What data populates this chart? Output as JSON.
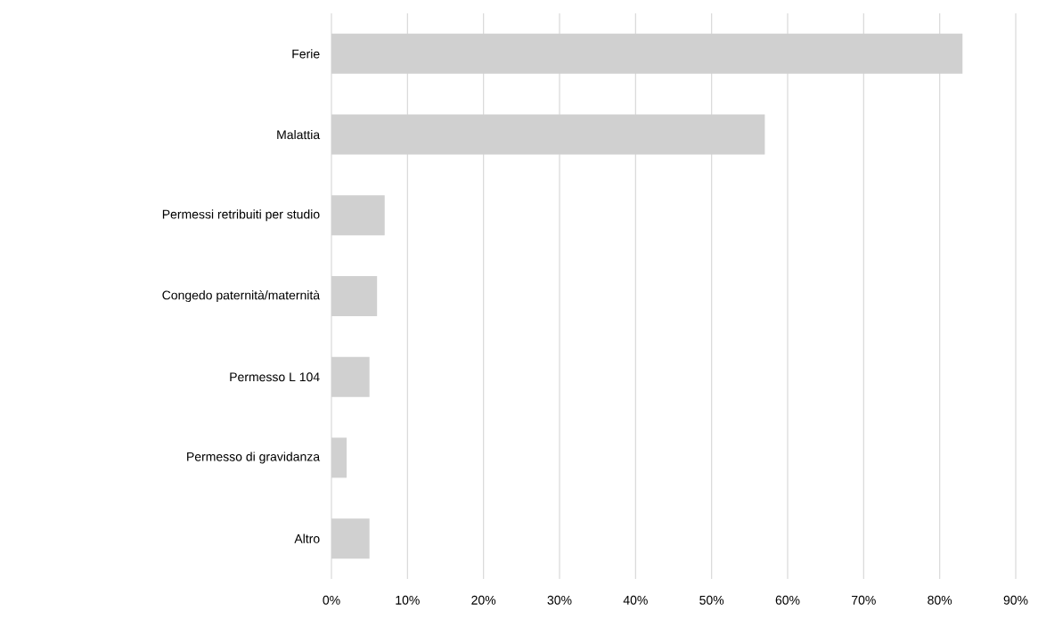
{
  "chart_data": {
    "type": "bar",
    "orientation": "horizontal",
    "categories": [
      "Ferie",
      "Malattia",
      "Permessi retribuiti per studio",
      "Congedo paternità/maternità",
      "Permesso L 104",
      "Permesso di gravidanza",
      "Altro"
    ],
    "values": [
      83,
      57,
      7,
      6,
      5,
      2,
      5
    ],
    "color": "#d0d0d0",
    "xlim": [
      0,
      90
    ],
    "xticks": [
      {
        "value": 0,
        "label": "0%"
      },
      {
        "value": 10,
        "label": "10%"
      },
      {
        "value": 20,
        "label": "20%"
      },
      {
        "value": 30,
        "label": "30%"
      },
      {
        "value": 40,
        "label": "40%"
      },
      {
        "value": 50,
        "label": "50%"
      },
      {
        "value": 60,
        "label": "60%"
      },
      {
        "value": 70,
        "label": "70%"
      },
      {
        "value": 80,
        "label": "80%"
      },
      {
        "value": 90,
        "label": "90%"
      }
    ],
    "grid": "x"
  }
}
